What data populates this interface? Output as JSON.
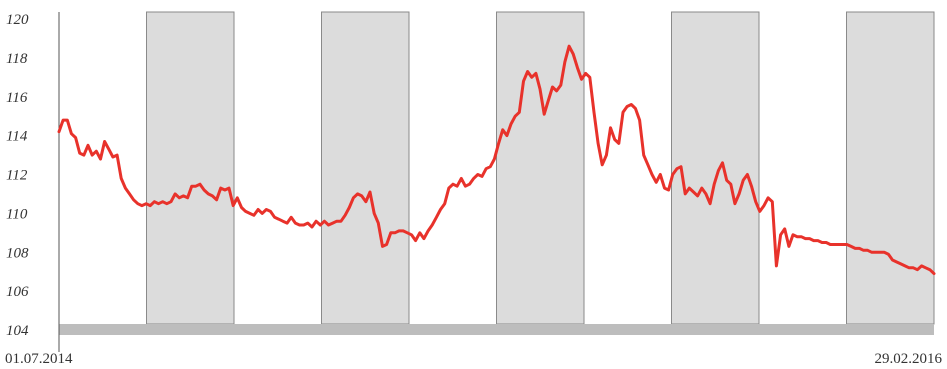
{
  "chart_data": {
    "type": "line",
    "title": "",
    "xlabel": "",
    "ylabel": "",
    "x_range": [
      "01.07.2014",
      "29.02.2016"
    ],
    "ylim": [
      104,
      120
    ],
    "y_ticks": [
      "120",
      "118",
      "116",
      "114",
      "112",
      "110",
      "108",
      "106",
      "104"
    ],
    "x_tick_labels": [
      "01.07.2014",
      "29.02.2016"
    ],
    "grid": false,
    "shaded_bands": 5,
    "colors": {
      "line": "#e8322b",
      "band": "#dcdcdc",
      "baseline_bar": "#bdbdbd",
      "axis": "#555555"
    },
    "series": [
      {
        "values": [
          114.2,
          114.8,
          114.8,
          114.1,
          113.9,
          113.1,
          113.0,
          113.5,
          113.0,
          113.2,
          112.8,
          113.7,
          113.3,
          112.9,
          113.0,
          111.8,
          111.3,
          111.0,
          110.7,
          110.5,
          110.4,
          110.5,
          110.4,
          110.6,
          110.5,
          110.6,
          110.5,
          110.6,
          111.0,
          110.8,
          110.9,
          110.8,
          111.4,
          111.4,
          111.5,
          111.2,
          111.0,
          110.9,
          110.7,
          111.3,
          111.2,
          111.3,
          110.4,
          110.8,
          110.3,
          110.1,
          110.0,
          109.9,
          110.2,
          110.0,
          110.2,
          110.1,
          109.8,
          109.7,
          109.6,
          109.5,
          109.8,
          109.5,
          109.4,
          109.4,
          109.5,
          109.3,
          109.6,
          109.4,
          109.6,
          109.4,
          109.5,
          109.6,
          109.6,
          109.9,
          110.3,
          110.8,
          111.0,
          110.9,
          110.6,
          111.1,
          110.0,
          109.5,
          108.3,
          108.4,
          109.0,
          109.0,
          109.1,
          109.1,
          109.0,
          108.9,
          108.6,
          109.0,
          108.7,
          109.1,
          109.4,
          109.8,
          110.2,
          110.5,
          111.3,
          111.5,
          111.4,
          111.8,
          111.4,
          111.5,
          111.8,
          112.0,
          111.9,
          112.3,
          112.4,
          112.8,
          113.6,
          114.3,
          114.0,
          114.6,
          115.0,
          115.2,
          116.8,
          117.3,
          117.0,
          117.2,
          116.4,
          115.1,
          115.8,
          116.5,
          116.3,
          116.6,
          117.8,
          118.6,
          118.2,
          117.5,
          116.9,
          117.2,
          117.0,
          115.2,
          113.6,
          112.5,
          113.0,
          114.4,
          113.8,
          113.6,
          115.2,
          115.5,
          115.6,
          115.4,
          114.8,
          113.0,
          112.5,
          112.0,
          111.6,
          112.0,
          111.3,
          111.2,
          112.0,
          112.3,
          112.4,
          111.0,
          111.3,
          111.1,
          110.9,
          111.3,
          111.0,
          110.5,
          111.5,
          112.2,
          112.6,
          111.7,
          111.5,
          110.5,
          111.0,
          111.7,
          112.0,
          111.4,
          110.6,
          110.1,
          110.4,
          110.8,
          110.6,
          107.3,
          108.9,
          109.2,
          108.3,
          108.9,
          108.8,
          108.8,
          108.7,
          108.7,
          108.6,
          108.6,
          108.5,
          108.5,
          108.4,
          108.4,
          108.4,
          108.4,
          108.4,
          108.3,
          108.2,
          108.2,
          108.1,
          108.1,
          108.0,
          108.0,
          108.0,
          108.0,
          107.9,
          107.6,
          107.5,
          107.4,
          107.3,
          107.2,
          107.2,
          107.1,
          107.3,
          107.2,
          107.1,
          106.9
        ]
      }
    ]
  }
}
